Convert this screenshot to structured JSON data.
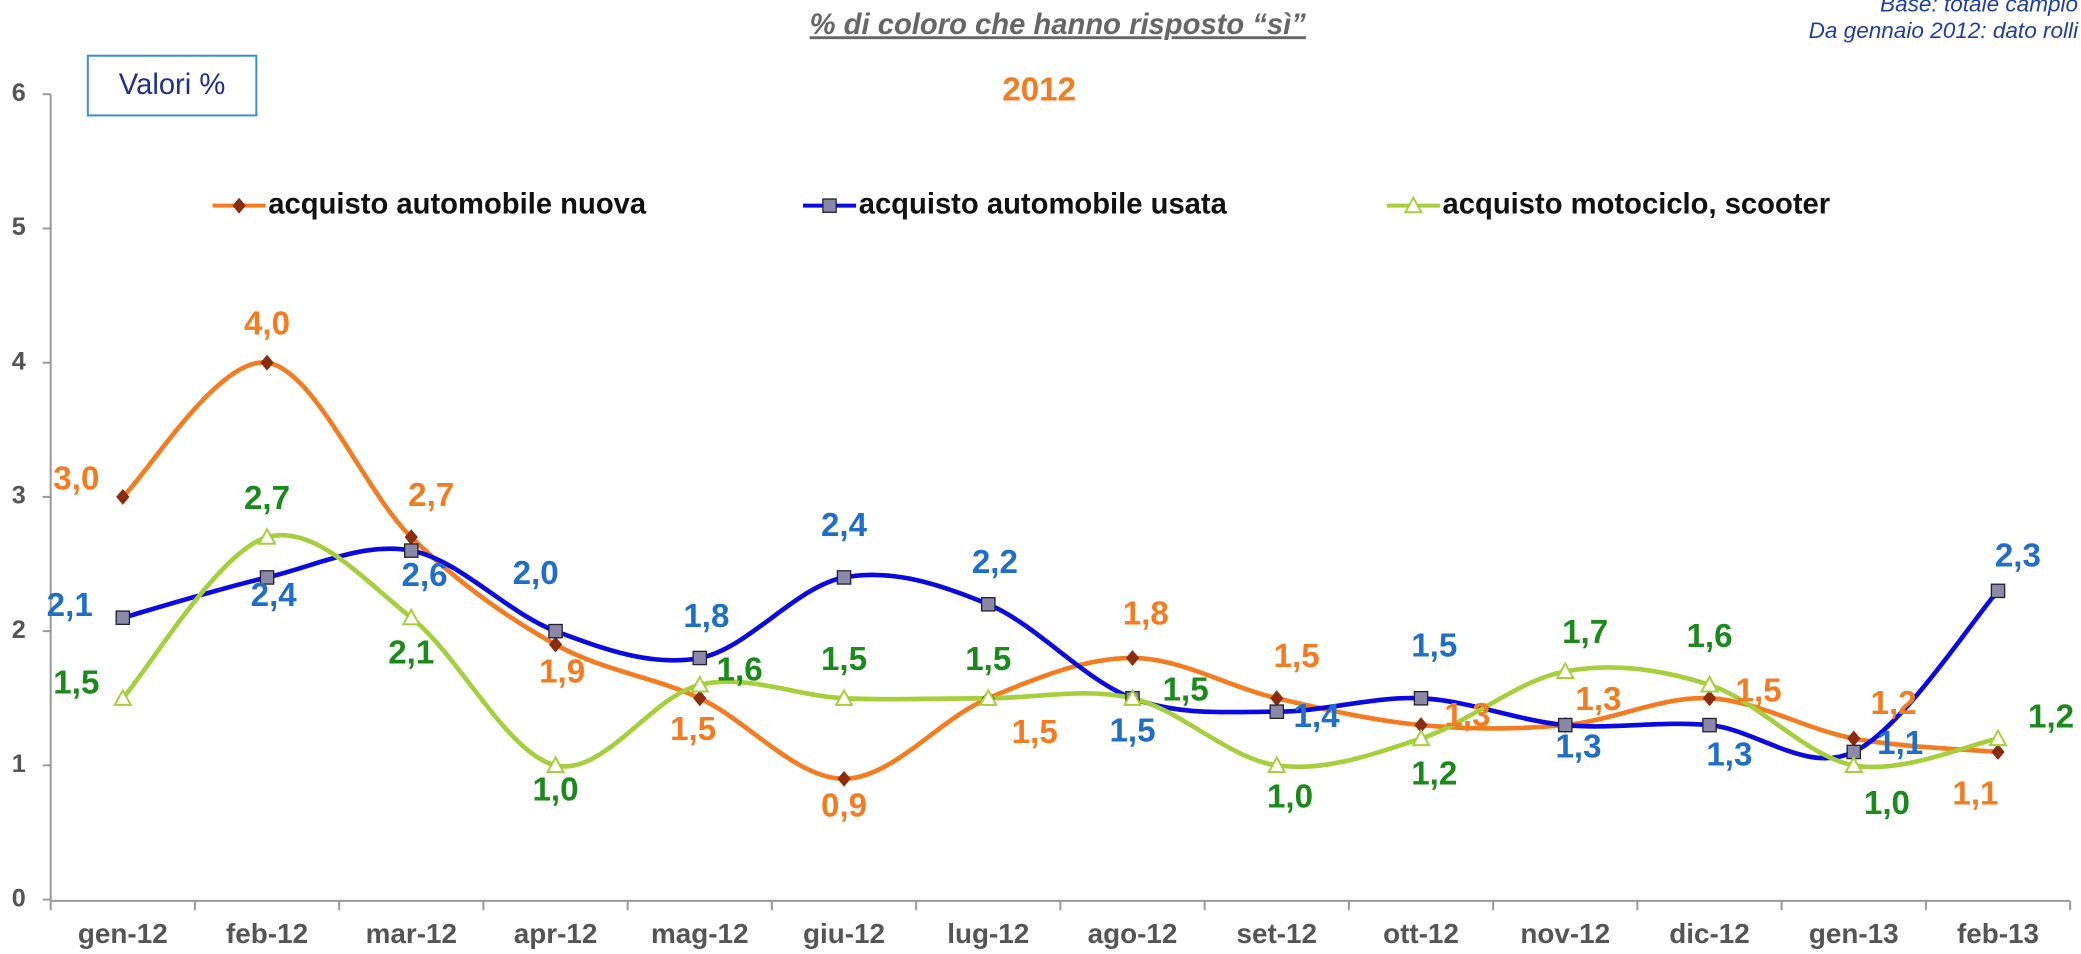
{
  "chart_data": {
    "type": "line",
    "title": "% di coloro che hanno risposto “sì”",
    "subtitle": "2012",
    "notes": [
      "Base: totale campio",
      "Da gennaio 2012: dato rolli"
    ],
    "annotation": "Valori %",
    "categories": [
      "gen-12",
      "feb-12",
      "mar-12",
      "apr-12",
      "mag-12",
      "giu-12",
      "lug-12",
      "ago-12",
      "set-12",
      "ott-12",
      "nov-12",
      "dic-12",
      "gen-13",
      "feb-13"
    ],
    "series": [
      {
        "name": "acquisto automobile nuova",
        "color": "#f47c20",
        "marker_color": "#8b2c0c",
        "values": [
          3.0,
          4.0,
          2.7,
          1.9,
          1.5,
          0.9,
          1.5,
          1.8,
          1.5,
          1.3,
          1.3,
          1.5,
          1.2,
          1.1
        ],
        "value_labels": [
          "3,0",
          "4,0",
          "2,7",
          "1,9",
          "1,5",
          "0,9",
          "1,5",
          "1,8",
          "1,5",
          "1,3",
          "1,3",
          "1,5",
          "1,2",
          "1,1"
        ]
      },
      {
        "name": "acquisto automobile usata",
        "color": "#0a0ae0",
        "marker_color": "#8a8aa8",
        "values": [
          2.1,
          2.4,
          2.6,
          2.0,
          1.8,
          2.4,
          2.2,
          1.5,
          1.4,
          1.5,
          1.3,
          1.3,
          1.1,
          2.3
        ],
        "value_labels": [
          "2,1",
          "2,4",
          "2,6",
          "2,0",
          "1,8",
          "2,4",
          "2,2",
          "1,5",
          "1,4",
          "1,5",
          "1,3",
          "1,3",
          "1,1",
          "2,3"
        ]
      },
      {
        "name": "acquisto motociclo, scooter",
        "color": "#a6cf3c",
        "marker_color": "#ffffff",
        "values": [
          1.5,
          2.7,
          2.1,
          1.0,
          1.6,
          1.5,
          1.5,
          1.5,
          1.0,
          1.2,
          1.7,
          1.6,
          1.0,
          1.2
        ],
        "value_labels": [
          "1,5",
          "2,7",
          "2,1",
          "1,0",
          "1,6",
          "1,5",
          "1,5",
          "1,5",
          "1,0",
          "1,2",
          "1,7",
          "1,6",
          "1,0",
          "1,2"
        ]
      }
    ],
    "ylim": [
      0,
      6
    ],
    "yticks": [
      0,
      1,
      2,
      3,
      4,
      5,
      6
    ],
    "grid": false
  }
}
